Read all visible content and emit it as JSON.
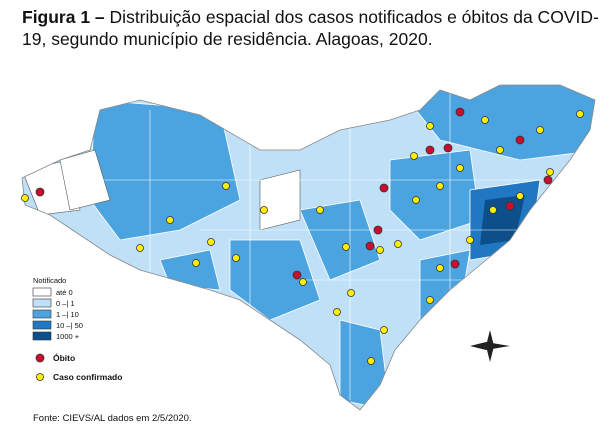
{
  "figure": {
    "label": "Figura 1 –",
    "caption": "Distribuição espacial dos casos notificados e óbitos da COVID-19, segundo município de residência. Alagoas, 2020."
  },
  "legend": {
    "title": "Notificado",
    "items": [
      "até 0",
      "0 –| 1",
      "1 –| 10",
      "10 –| 50",
      "1000 +"
    ],
    "death": "Óbito",
    "confirmed": "Caso confirmado"
  },
  "source": "Fonte: CIEVS/AL dados em 2/5/2020."
}
